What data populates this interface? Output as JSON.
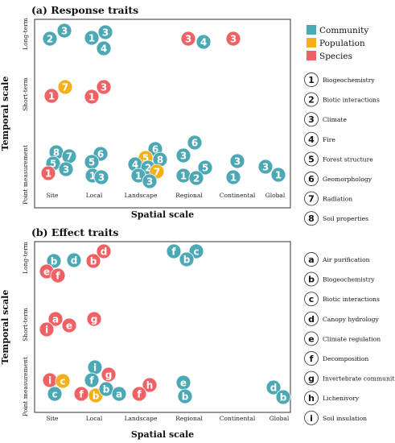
{
  "colors": {
    "Community": "#4BA8B4",
    "Population": "#F5B019",
    "Species": "#EE6266",
    "frame": "#555555"
  },
  "chart_data": [
    {
      "type": "scatter",
      "title": "(a) Response traits",
      "xlabel": "Spatial scale",
      "ylabel": "Temporal scale",
      "x_categories": [
        "Site",
        "Local",
        "Landscape",
        "Regional",
        "Continental",
        "Global"
      ],
      "y_categories": [
        "Point measurement",
        "Short-term",
        "Long-term"
      ],
      "color_legend": [
        {
          "label": "Community",
          "color": "#4BA8B4"
        },
        {
          "label": "Population",
          "color": "#F5B019"
        },
        {
          "label": "Species",
          "color": "#EE6266"
        }
      ],
      "symbol_legend": [
        {
          "symbol": "1",
          "label": "Biogeochemistry"
        },
        {
          "symbol": "2",
          "label": "Biotic interactions"
        },
        {
          "symbol": "3",
          "label": "Climate"
        },
        {
          "symbol": "4",
          "label": "Fire"
        },
        {
          "symbol": "5",
          "label": "Forest structure"
        },
        {
          "symbol": "6",
          "label": "Geomorphology"
        },
        {
          "symbol": "7",
          "label": "Radiation"
        },
        {
          "symbol": "8",
          "label": "Soil properties"
        }
      ],
      "points": [
        {
          "x": "Site",
          "y": "Long-term",
          "symbol": "2",
          "group": "Community"
        },
        {
          "x": "Site",
          "y": "Long-term",
          "symbol": "3",
          "group": "Community"
        },
        {
          "x": "Local",
          "y": "Long-term",
          "symbol": "1",
          "group": "Community"
        },
        {
          "x": "Local",
          "y": "Long-term",
          "symbol": "3",
          "group": "Community"
        },
        {
          "x": "Local",
          "y": "Long-term",
          "symbol": "4",
          "group": "Community"
        },
        {
          "x": "Regional",
          "y": "Long-term",
          "symbol": "3",
          "group": "Species"
        },
        {
          "x": "Regional",
          "y": "Long-term",
          "symbol": "4",
          "group": "Community"
        },
        {
          "x": "Continental",
          "y": "Long-term",
          "symbol": "3",
          "group": "Species"
        },
        {
          "x": "Site",
          "y": "Short-term",
          "symbol": "7",
          "group": "Population"
        },
        {
          "x": "Site",
          "y": "Short-term",
          "symbol": "1",
          "group": "Species"
        },
        {
          "x": "Local",
          "y": "Short-term",
          "symbol": "3",
          "group": "Species"
        },
        {
          "x": "Local",
          "y": "Short-term",
          "symbol": "1",
          "group": "Species"
        },
        {
          "x": "Site",
          "y": "Point measurement",
          "symbol": "8",
          "group": "Community"
        },
        {
          "x": "Site",
          "y": "Point measurement",
          "symbol": "7",
          "group": "Community"
        },
        {
          "x": "Site",
          "y": "Point measurement",
          "symbol": "5",
          "group": "Community"
        },
        {
          "x": "Site",
          "y": "Point measurement",
          "symbol": "3",
          "group": "Community"
        },
        {
          "x": "Site",
          "y": "Point measurement",
          "symbol": "1",
          "group": "Species"
        },
        {
          "x": "Local",
          "y": "Point measurement",
          "symbol": "6",
          "group": "Community"
        },
        {
          "x": "Local",
          "y": "Point measurement",
          "symbol": "5",
          "group": "Community"
        },
        {
          "x": "Local",
          "y": "Point measurement",
          "symbol": "1",
          "group": "Community"
        },
        {
          "x": "Local",
          "y": "Point measurement",
          "symbol": "3",
          "group": "Community"
        },
        {
          "x": "Landscape",
          "y": "Point measurement",
          "symbol": "6",
          "group": "Community"
        },
        {
          "x": "Landscape",
          "y": "Point measurement",
          "symbol": "5",
          "group": "Population"
        },
        {
          "x": "Landscape",
          "y": "Point measurement",
          "symbol": "8",
          "group": "Community"
        },
        {
          "x": "Landscape",
          "y": "Point measurement",
          "symbol": "4",
          "group": "Community"
        },
        {
          "x": "Landscape",
          "y": "Point measurement",
          "symbol": "2",
          "group": "Community"
        },
        {
          "x": "Landscape",
          "y": "Point measurement",
          "symbol": "7",
          "group": "Population"
        },
        {
          "x": "Landscape",
          "y": "Point measurement",
          "symbol": "1",
          "group": "Community"
        },
        {
          "x": "Landscape",
          "y": "Point measurement",
          "symbol": "3",
          "group": "Community"
        },
        {
          "x": "Regional",
          "y": "Point measurement",
          "symbol": "6",
          "group": "Community"
        },
        {
          "x": "Regional",
          "y": "Point measurement",
          "symbol": "3",
          "group": "Community"
        },
        {
          "x": "Regional",
          "y": "Point measurement",
          "symbol": "5",
          "group": "Community"
        },
        {
          "x": "Regional",
          "y": "Point measurement",
          "symbol": "1",
          "group": "Community"
        },
        {
          "x": "Regional",
          "y": "Point measurement",
          "symbol": "2",
          "group": "Community"
        },
        {
          "x": "Continental",
          "y": "Point measurement",
          "symbol": "3",
          "group": "Community"
        },
        {
          "x": "Continental",
          "y": "Point measurement",
          "symbol": "1",
          "group": "Community"
        },
        {
          "x": "Global",
          "y": "Point measurement",
          "symbol": "3",
          "group": "Community"
        },
        {
          "x": "Global",
          "y": "Point measurement",
          "symbol": "1",
          "group": "Community"
        }
      ]
    },
    {
      "type": "scatter",
      "title": "(b) Effect traits",
      "xlabel": "Spatial scale",
      "ylabel": "Temporal scale",
      "x_categories": [
        "Site",
        "Local",
        "Landscape",
        "Regional",
        "Continental",
        "Global"
      ],
      "y_categories": [
        "Point measurement",
        "Short-term",
        "Long-term"
      ],
      "symbol_legend": [
        {
          "symbol": "a",
          "label": "Air purification"
        },
        {
          "symbol": "b",
          "label": "Biogeochemistry"
        },
        {
          "symbol": "c",
          "label": "Biotic interactions"
        },
        {
          "symbol": "d",
          "label": "Canopy hydrology"
        },
        {
          "symbol": "e",
          "label": "Climate regulation"
        },
        {
          "symbol": "f",
          "label": "Decomposition"
        },
        {
          "symbol": "g",
          "label": "Invertebrate communities"
        },
        {
          "symbol": "h",
          "label": "Lichenivory"
        },
        {
          "symbol": "i",
          "label": "Soil insulation"
        }
      ],
      "points": [
        {
          "x": "Site",
          "y": "Long-term",
          "symbol": "b",
          "group": "Community"
        },
        {
          "x": "Site",
          "y": "Long-term",
          "symbol": "d",
          "group": "Community"
        },
        {
          "x": "Site",
          "y": "Long-term",
          "symbol": "e",
          "group": "Species"
        },
        {
          "x": "Site",
          "y": "Long-term",
          "symbol": "f",
          "group": "Species"
        },
        {
          "x": "Local",
          "y": "Long-term",
          "symbol": "b",
          "group": "Species"
        },
        {
          "x": "Local",
          "y": "Long-term",
          "symbol": "d",
          "group": "Species"
        },
        {
          "x": "Regional",
          "y": "Long-term",
          "symbol": "f",
          "group": "Community"
        },
        {
          "x": "Regional",
          "y": "Long-term",
          "symbol": "c",
          "group": "Community"
        },
        {
          "x": "Regional",
          "y": "Long-term",
          "symbol": "b",
          "group": "Community"
        },
        {
          "x": "Site",
          "y": "Short-term",
          "symbol": "a",
          "group": "Species"
        },
        {
          "x": "Site",
          "y": "Short-term",
          "symbol": "e",
          "group": "Species"
        },
        {
          "x": "Site",
          "y": "Short-term",
          "symbol": "i",
          "group": "Species"
        },
        {
          "x": "Local",
          "y": "Short-term",
          "symbol": "g",
          "group": "Species"
        },
        {
          "x": "Site",
          "y": "Point measurement",
          "symbol": "i",
          "group": "Species"
        },
        {
          "x": "Site",
          "y": "Point measurement",
          "symbol": "c",
          "group": "Population"
        },
        {
          "x": "Site",
          "y": "Point measurement",
          "symbol": "c",
          "group": "Community"
        },
        {
          "x": "Local",
          "y": "Point measurement",
          "symbol": "i",
          "group": "Community"
        },
        {
          "x": "Local",
          "y": "Point measurement",
          "symbol": "f",
          "group": "Community"
        },
        {
          "x": "Local",
          "y": "Point measurement",
          "symbol": "g",
          "group": "Species"
        },
        {
          "x": "Local",
          "y": "Point measurement",
          "symbol": "f",
          "group": "Species"
        },
        {
          "x": "Local",
          "y": "Point measurement",
          "symbol": "b",
          "group": "Population"
        },
        {
          "x": "Local",
          "y": "Point measurement",
          "symbol": "b",
          "group": "Community"
        },
        {
          "x": "Local",
          "y": "Point measurement",
          "symbol": "a",
          "group": "Community"
        },
        {
          "x": "Landscape",
          "y": "Point measurement",
          "symbol": "h",
          "group": "Species"
        },
        {
          "x": "Landscape",
          "y": "Point measurement",
          "symbol": "f",
          "group": "Species"
        },
        {
          "x": "Regional",
          "y": "Point measurement",
          "symbol": "e",
          "group": "Community"
        },
        {
          "x": "Regional",
          "y": "Point measurement",
          "symbol": "b",
          "group": "Community"
        },
        {
          "x": "Global",
          "y": "Point measurement",
          "symbol": "d",
          "group": "Community"
        },
        {
          "x": "Global",
          "y": "Point measurement",
          "symbol": "b",
          "group": "Community"
        }
      ]
    }
  ]
}
